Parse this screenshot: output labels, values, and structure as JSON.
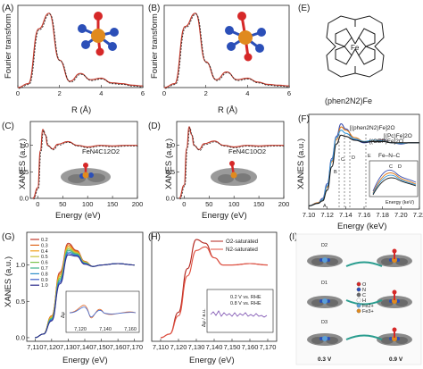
{
  "panels": {
    "A": {
      "letter": "(A)",
      "ylabel": "Fourier transform",
      "xlabel": "R (Å)",
      "xticks": [
        "0",
        "2",
        "4",
        "6"
      ]
    },
    "B": {
      "letter": "(B)",
      "ylabel": "Fourier transform",
      "xlabel": "R (Å)",
      "xticks": [
        "0",
        "2",
        "4",
        "6"
      ]
    },
    "C": {
      "letter": "(C)",
      "ylabel": "XANES (a.u.)",
      "xlabel": "Energy (eV)",
      "xticks": [
        "0",
        "50",
        "100",
        "150",
        "200"
      ],
      "yticks": [
        "0.0",
        "0.5",
        "1.0"
      ],
      "annotation": "FeN4C12O2"
    },
    "D": {
      "letter": "(D)",
      "ylabel": "XANES (a.u.)",
      "xlabel": "Energy (eV)",
      "xticks": [
        "0",
        "50",
        "100",
        "150",
        "200"
      ],
      "yticks": [
        "0.0",
        "0.5",
        "1.0"
      ],
      "annotation": "FeN4C10O2"
    },
    "E": {
      "letter": "(E)",
      "caption": "(phen2N2)Fe",
      "center_atom": "Fe"
    },
    "F": {
      "letter": "(F)",
      "ylabel": "XANES (a.u.)",
      "xlabel": "Energy (keV)",
      "xticks": [
        "7.10",
        "7.12",
        "7.14",
        "7.16",
        "7.18",
        "7.20",
        "7.22"
      ],
      "legend": [
        "[(phen2N2)Fe]2O",
        "[(OEP)Fe]2O",
        "[(Pc)Fe]2O",
        "Fe–N–C"
      ],
      "peak_labels": [
        "A",
        "B",
        "C",
        "D",
        "E"
      ],
      "inset": {
        "ylabel": "Intensity (a.u.)",
        "xlabel": "Energy (keV)",
        "xticks": [
          "7.12",
          "7.13",
          "7.14"
        ],
        "labels": [
          "C",
          "D"
        ]
      }
    },
    "G": {
      "letter": "(G)",
      "ylabel": "XANES (a.u.)",
      "xlabel": "Energy (eV)",
      "xticks": [
        "7,110",
        "7,120",
        "7,130",
        "7,140",
        "7,150",
        "7,160",
        "7,170"
      ],
      "yticks": [
        "0.0",
        "0.5",
        "1.0"
      ],
      "legend": [
        "0.2",
        "0.3",
        "0.4",
        "0.5",
        "0.6",
        "0.7",
        "0.8",
        "0.9",
        "1.0"
      ],
      "inset": {
        "ylabel": "Δμ",
        "xticks": [
          "7,120",
          "7,140",
          "7,160"
        ]
      }
    },
    "H": {
      "letter": "(H)",
      "ylabel": "XANES (a.u.)",
      "xlabel": "Energy (eV)",
      "xticks": [
        "7,110",
        "7,120",
        "7,130",
        "7,140",
        "7,150",
        "7,160",
        "7,170"
      ],
      "legend": [
        "O2-saturated",
        "N2-saturated"
      ],
      "inset": {
        "ylabel": "Δμ / a.u.",
        "legend": [
          "0.2 V vs. RHE",
          "0.8 V vs. RHE"
        ]
      }
    },
    "I": {
      "letter": "(I)",
      "labels": [
        "D2",
        "D1",
        "D3"
      ],
      "voltages": [
        "0.3 V",
        "0.9 V"
      ],
      "legend": [
        "O",
        "N",
        "C",
        "H",
        "Fe2+",
        "Fe3+"
      ]
    }
  },
  "chart_data": [
    {
      "type": "line",
      "panel": "A",
      "x": [
        0,
        0.5,
        1.0,
        1.5,
        2.0,
        2.5,
        3.0,
        3.5,
        4.0,
        4.5,
        5.0,
        5.5,
        6.0
      ],
      "series": [
        {
          "values": [
            0.0,
            0.05,
            0.75,
            0.95,
            0.35,
            0.08,
            0.18,
            0.1,
            0.12,
            0.06,
            0.05,
            0.03,
            0.02
          ]
        }
      ],
      "xlabel": "R (Å)",
      "ylabel": "Fourier transform"
    },
    {
      "type": "line",
      "panel": "B",
      "x": [
        0,
        0.5,
        1.0,
        1.5,
        2.0,
        2.5,
        3.0,
        3.5,
        4.0,
        4.5,
        5.0,
        5.5,
        6.0
      ],
      "series": [
        {
          "values": [
            0.0,
            0.05,
            0.78,
            0.95,
            0.33,
            0.1,
            0.2,
            0.1,
            0.12,
            0.07,
            0.04,
            0.03,
            0.02
          ]
        }
      ],
      "xlabel": "R (Å)",
      "ylabel": "Fourier transform"
    },
    {
      "type": "line",
      "panel": "C",
      "x": [
        -10,
        0,
        5,
        10,
        15,
        20,
        30,
        40,
        60,
        80,
        100,
        125,
        150,
        175,
        200
      ],
      "series": [
        {
          "values": [
            0.0,
            0.2,
            0.9,
            1.3,
            1.2,
            1.0,
            0.93,
            1.02,
            1.07,
            1.0,
            0.97,
            1.0,
            0.99,
            1.0,
            1.0
          ]
        }
      ],
      "xlabel": "Energy (eV)",
      "ylabel": "XANES (a.u.)",
      "ylim": [
        0,
        1.4
      ]
    },
    {
      "type": "line",
      "panel": "D",
      "x": [
        -10,
        0,
        5,
        10,
        15,
        20,
        30,
        40,
        60,
        80,
        100,
        125,
        150,
        175,
        200
      ],
      "series": [
        {
          "values": [
            0.0,
            0.25,
            0.95,
            1.35,
            1.2,
            1.0,
            0.92,
            1.03,
            1.08,
            1.0,
            0.97,
            1.0,
            0.99,
            1.0,
            1.0
          ]
        }
      ],
      "xlabel": "Energy (eV)",
      "ylabel": "XANES (a.u.)",
      "ylim": [
        0,
        1.4
      ]
    },
    {
      "type": "line",
      "panel": "F",
      "x": [
        7.1,
        7.11,
        7.115,
        7.12,
        7.125,
        7.13,
        7.135,
        7.14,
        7.15,
        7.16,
        7.17,
        7.18,
        7.19,
        7.2,
        7.21,
        7.22
      ],
      "series": [
        {
          "name": "[(phen2N2)Fe]2O",
          "values": [
            0.0,
            0.05,
            0.12,
            0.35,
            0.75,
            1.1,
            1.3,
            1.22,
            1.05,
            1.0,
            1.02,
            1.05,
            1.0,
            0.98,
            1.0,
            1.0
          ]
        },
        {
          "name": "[(OEP)Fe]2O",
          "values": [
            0.0,
            0.05,
            0.1,
            0.3,
            0.7,
            1.05,
            1.25,
            1.2,
            1.08,
            1.02,
            1.03,
            1.04,
            1.0,
            0.99,
            1.0,
            1.0
          ]
        },
        {
          "name": "[(Pc)Fe]2O",
          "values": [
            0.0,
            0.04,
            0.1,
            0.32,
            0.72,
            1.08,
            1.2,
            1.15,
            1.06,
            1.02,
            1.04,
            1.03,
            1.0,
            0.99,
            1.0,
            1.0
          ]
        },
        {
          "name": "Fe–N–C",
          "values": [
            0.0,
            0.04,
            0.08,
            0.25,
            0.62,
            0.98,
            1.12,
            1.1,
            1.04,
            1.01,
            1.02,
            1.02,
            1.0,
            1.0,
            1.0,
            1.0
          ]
        }
      ],
      "xlabel": "Energy (keV)",
      "ylabel": "XANES (a.u.)"
    },
    {
      "type": "line",
      "panel": "G",
      "x": [
        7110,
        7115,
        7120,
        7125,
        7130,
        7135,
        7140,
        7145,
        7150,
        7160,
        7170
      ],
      "series": [
        {
          "name": "0.2",
          "values": [
            0.0,
            0.05,
            0.3,
            0.9,
            1.3,
            1.2,
            1.05,
            0.98,
            1.0,
            1.02,
            1.0
          ]
        },
        {
          "name": "0.3",
          "values": [
            0.0,
            0.05,
            0.3,
            0.88,
            1.28,
            1.19,
            1.05,
            0.98,
            1.0,
            1.02,
            1.0
          ]
        },
        {
          "name": "0.4",
          "values": [
            0.0,
            0.05,
            0.29,
            0.86,
            1.26,
            1.18,
            1.04,
            0.98,
            1.0,
            1.02,
            1.0
          ]
        },
        {
          "name": "0.5",
          "values": [
            0.0,
            0.05,
            0.28,
            0.84,
            1.24,
            1.17,
            1.04,
            0.98,
            1.0,
            1.02,
            1.0
          ]
        },
        {
          "name": "0.6",
          "values": [
            0.0,
            0.05,
            0.27,
            0.82,
            1.22,
            1.16,
            1.03,
            0.98,
            1.0,
            1.02,
            1.0
          ]
        },
        {
          "name": "0.7",
          "values": [
            0.0,
            0.05,
            0.26,
            0.8,
            1.2,
            1.15,
            1.03,
            0.98,
            1.0,
            1.02,
            1.0
          ]
        },
        {
          "name": "0.8",
          "values": [
            0.0,
            0.05,
            0.25,
            0.78,
            1.18,
            1.14,
            1.02,
            0.98,
            1.0,
            1.02,
            1.0
          ]
        },
        {
          "name": "0.9",
          "values": [
            0.0,
            0.05,
            0.24,
            0.76,
            1.16,
            1.13,
            1.02,
            0.98,
            1.0,
            1.02,
            1.0
          ]
        },
        {
          "name": "1.0",
          "values": [
            0.0,
            0.05,
            0.23,
            0.74,
            1.14,
            1.12,
            1.01,
            0.98,
            1.0,
            1.02,
            1.0
          ]
        }
      ],
      "xlabel": "Energy (eV)",
      "ylabel": "XANES (a.u.)",
      "ylim": [
        0,
        1.4
      ]
    },
    {
      "type": "line",
      "panel": "H",
      "x": [
        7110,
        7115,
        7120,
        7125,
        7130,
        7135,
        7140,
        7145,
        7150,
        7160,
        7170
      ],
      "series": [
        {
          "name": "O2-saturated",
          "values": [
            0.0,
            0.05,
            0.35,
            0.95,
            1.35,
            1.3,
            1.1,
            1.0,
            1.0,
            1.02,
            1.0
          ]
        },
        {
          "name": "N2-saturated",
          "values": [
            0.0,
            0.05,
            0.3,
            0.85,
            1.2,
            1.25,
            1.1,
            1.0,
            1.0,
            1.02,
            1.0
          ]
        }
      ],
      "xlabel": "Energy (eV)",
      "ylabel": "XANES (a.u.)"
    }
  ],
  "colors": {
    "data": "#c0392b",
    "fit": "#222222",
    "molecule_fe": "#e08a1e",
    "molecule_n": "#2b4fb8",
    "molecule_o": "#d62828"
  }
}
